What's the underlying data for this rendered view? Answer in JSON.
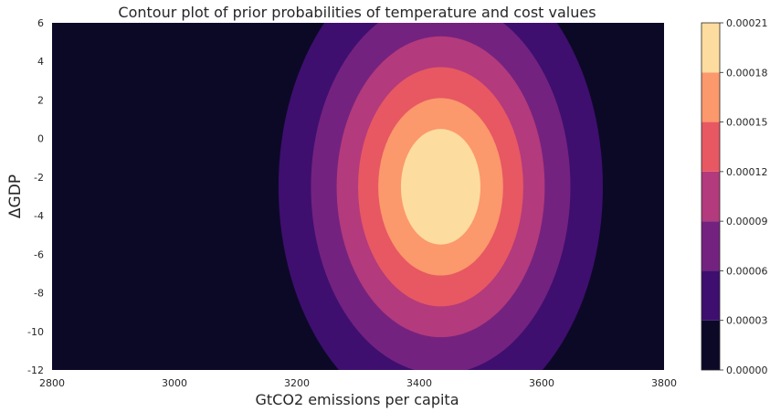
{
  "chart_data": {
    "type": "contour",
    "title": "Contour plot of prior probabilities of temperature and cost values",
    "xlabel": "GtCO2 emissions per capita",
    "ylabel": "ΔGDP",
    "xlim": [
      2800,
      3800
    ],
    "ylim": [
      -12,
      6
    ],
    "x_ticks": [
      "2800",
      "3000",
      "3200",
      "3400",
      "3600",
      "3800"
    ],
    "y_ticks": [
      "6",
      "4",
      "2",
      "0",
      "-2",
      "-4",
      "-6",
      "-8",
      "-10",
      "-12"
    ],
    "colorbar": {
      "ticks": [
        "0.00021",
        "0.00018",
        "0.00015",
        "0.00012",
        "0.00009",
        "0.00006",
        "0.00003",
        "0.00000"
      ],
      "levels": [
        0,
        3e-05,
        6e-05,
        9e-05,
        0.00012,
        0.00015,
        0.00018,
        0.00021
      ],
      "colors": [
        "#0c0927",
        "#3e0f6f",
        "#74227f",
        "#b33a7c",
        "#e75862",
        "#fb986c",
        "#fddc9f"
      ]
    },
    "peak": {
      "x": 3435,
      "y": -2.5
    },
    "contours": [
      {
        "level": 3e-05,
        "rx": 265,
        "ry": 12.2
      },
      {
        "level": 6e-05,
        "rx": 212,
        "ry": 9.7
      },
      {
        "level": 9e-05,
        "rx": 170,
        "ry": 7.8
      },
      {
        "level": 0.00012,
        "rx": 135,
        "ry": 6.2
      },
      {
        "level": 0.00015,
        "rx": 102,
        "ry": 4.6
      },
      {
        "level": 0.00018,
        "rx": 65,
        "ry": 3.0
      }
    ],
    "grid": false,
    "legend": "colorbar-right"
  }
}
